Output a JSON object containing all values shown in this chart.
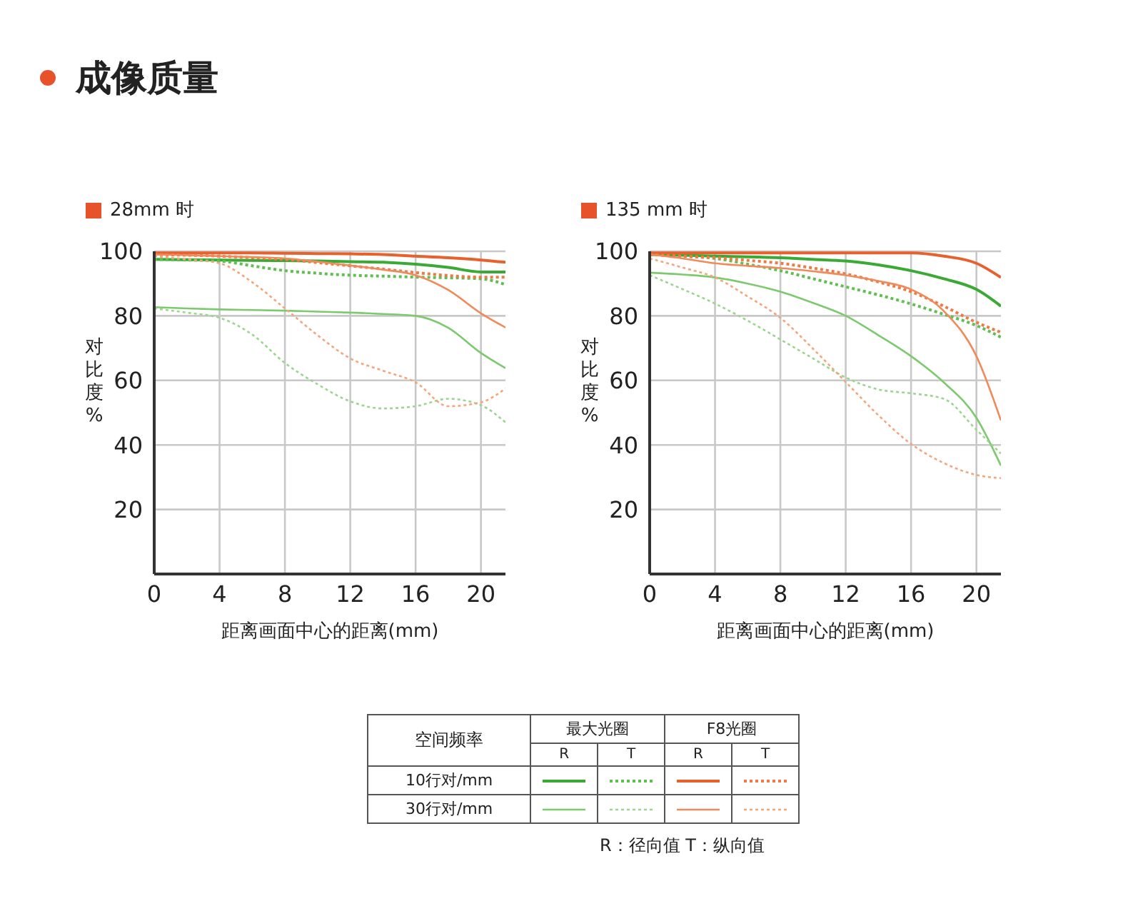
{
  "chart_data": [
    {
      "type": "other",
      "title": "成像质量"
    },
    {
      "type": "line",
      "title": "28mm 时",
      "xlabel": "距离画面中心的距离(mm)",
      "ylabel": "对比度%",
      "x": [
        0,
        2,
        4,
        6,
        8,
        10,
        12,
        14,
        16,
        18,
        20,
        21.5
      ],
      "xlim": [
        0,
        21.5
      ],
      "xticks": [
        0,
        4,
        8,
        12,
        16,
        20
      ],
      "ylim": [
        0,
        100
      ],
      "yticks": [
        20,
        40,
        60,
        80,
        100
      ],
      "grid": true,
      "marker": "none",
      "series": [
        {
          "color": "#3aaa35",
          "line_style": "solid",
          "values": [
            97.5,
            97.4,
            97.3,
            97.2,
            97.1,
            97,
            96.8,
            96.6,
            96,
            95,
            93.6,
            93.6
          ]
        },
        {
          "color": "#5fbf4f",
          "line_style": "dotted",
          "values": [
            97.5,
            97.3,
            97,
            95.5,
            94,
            93.2,
            92.6,
            92.3,
            92,
            91.8,
            91.5,
            89.7
          ]
        },
        {
          "color": "#e8612c",
          "line_style": "solid",
          "values": [
            99.5,
            99.5,
            99.5,
            99.5,
            99.4,
            99.3,
            99.2,
            99,
            98.5,
            98,
            97.3,
            96.6
          ]
        },
        {
          "color": "#ee7a45",
          "line_style": "dotted",
          "values": [
            99,
            98.8,
            98.5,
            98,
            97.5,
            96.5,
            95.5,
            94.5,
            93.4,
            92.5,
            92,
            92
          ]
        },
        {
          "color": "#7cc96e",
          "line_style": "solid",
          "values": [
            82.7,
            82.3,
            82,
            81.8,
            81.6,
            81.3,
            81,
            80.6,
            80,
            76.3,
            68.5,
            63.8
          ]
        },
        {
          "color": "#9bd68e",
          "line_style": "dotted",
          "values": [
            82.3,
            81,
            79.4,
            74.2,
            65.4,
            58.8,
            53.5,
            51.3,
            52,
            54.3,
            52.3,
            47
          ]
        },
        {
          "color": "#f08a5a",
          "line_style": "solid",
          "values": [
            99,
            98.8,
            98.5,
            98.2,
            97.8,
            96.8,
            95.6,
            94.3,
            92.6,
            88,
            80.8,
            76.4
          ]
        },
        {
          "color": "#f4a57a",
          "line_style": "dotted",
          "values": [
            98.5,
            97.5,
            96.3,
            90.4,
            82.3,
            74,
            66.8,
            63,
            59.4,
            52,
            53.2,
            57.5
          ]
        }
      ]
    },
    {
      "type": "line",
      "title": "135 mm 时",
      "xlabel": "距离画面中心的距离(mm)",
      "ylabel": "对比度%",
      "x": [
        0,
        2,
        4,
        6,
        8,
        10,
        12,
        14,
        16,
        18,
        20,
        21.5
      ],
      "xlim": [
        0,
        21.5
      ],
      "xticks": [
        0,
        4,
        8,
        12,
        16,
        20
      ],
      "ylim": [
        0,
        100
      ],
      "yticks": [
        20,
        40,
        60,
        80,
        100
      ],
      "grid": true,
      "marker": "none",
      "series": [
        {
          "color": "#3aaa35",
          "line_style": "solid",
          "values": [
            99,
            98.8,
            98.5,
            98.3,
            98,
            97.5,
            97,
            95.8,
            94,
            91.5,
            88.2,
            83
          ]
        },
        {
          "color": "#5fbf4f",
          "line_style": "dotted",
          "values": [
            99,
            98.5,
            97.8,
            96,
            94,
            91.5,
            89,
            86.5,
            83.7,
            80.5,
            77,
            73.4
          ]
        },
        {
          "color": "#e8612c",
          "line_style": "solid",
          "values": [
            99.5,
            99.5,
            99.5,
            99.5,
            99.5,
            99.5,
            99.5,
            99.5,
            99.5,
            98.5,
            96.3,
            91.9
          ]
        },
        {
          "color": "#ee7a45",
          "line_style": "dotted",
          "values": [
            99,
            98.5,
            98,
            97.2,
            96.3,
            94.8,
            93,
            90.5,
            87.5,
            83,
            78,
            74.9
          ]
        },
        {
          "color": "#7cc96e",
          "line_style": "solid",
          "values": [
            93.4,
            92.8,
            91.9,
            90,
            87.5,
            84,
            80,
            74,
            67.5,
            59.4,
            48.4,
            33.6
          ]
        },
        {
          "color": "#9bd68e",
          "line_style": "dotted",
          "values": [
            92.6,
            88.3,
            83.8,
            78.5,
            72.7,
            66.8,
            60.9,
            57.2,
            56,
            54.3,
            44.7,
            37.3
          ]
        },
        {
          "color": "#f08a5a",
          "line_style": "solid",
          "values": [
            99,
            97.8,
            96.3,
            95.5,
            94.8,
            93.8,
            92.6,
            90.8,
            88.2,
            81.5,
            67.5,
            47.6
          ]
        },
        {
          "color": "#f4a57a",
          "line_style": "dotted",
          "values": [
            97.8,
            95,
            91.9,
            86,
            79.4,
            69.8,
            59.5,
            49.2,
            40.3,
            34.4,
            30.7,
            29.7
          ]
        }
      ]
    },
    {
      "type": "other",
      "annotations": [
        "空间频率",
        "最大光圈",
        "F8光圈",
        "R",
        "T",
        "R",
        "T",
        "10行对/mm",
        "30行对/mm",
        "R：径向值  T：纵向值"
      ]
    }
  ]
}
